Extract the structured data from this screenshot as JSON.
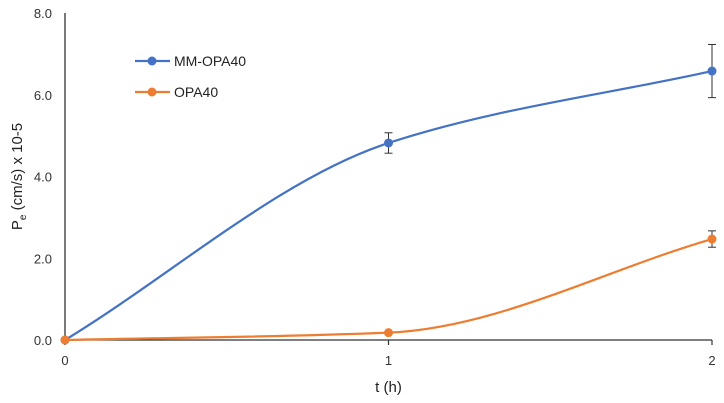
{
  "chart_data": {
    "type": "line",
    "x": [
      0,
      1,
      2
    ],
    "x_ticks": [
      "0",
      "1",
      "2"
    ],
    "xlabel": "t (h)",
    "ylabel_main": "P",
    "ylabel_sub": "e",
    "ylabel_rest": " (cm/s) x 10-5",
    "ylim": [
      0,
      8
    ],
    "y_ticks": [
      "0.0",
      "2.0",
      "4.0",
      "6.0",
      "8.0"
    ],
    "grid": false,
    "legend_position": "top-left",
    "smooth": true,
    "series": [
      {
        "name": "MM-OPA40",
        "color": "#4472C4",
        "values": [
          0,
          4.82,
          6.58
        ],
        "errors": [
          0,
          0.25,
          0.65
        ]
      },
      {
        "name": "OPA40",
        "color": "#ED7D31",
        "values": [
          0,
          0.18,
          2.47
        ],
        "errors": [
          0,
          0,
          0.2
        ]
      }
    ]
  }
}
